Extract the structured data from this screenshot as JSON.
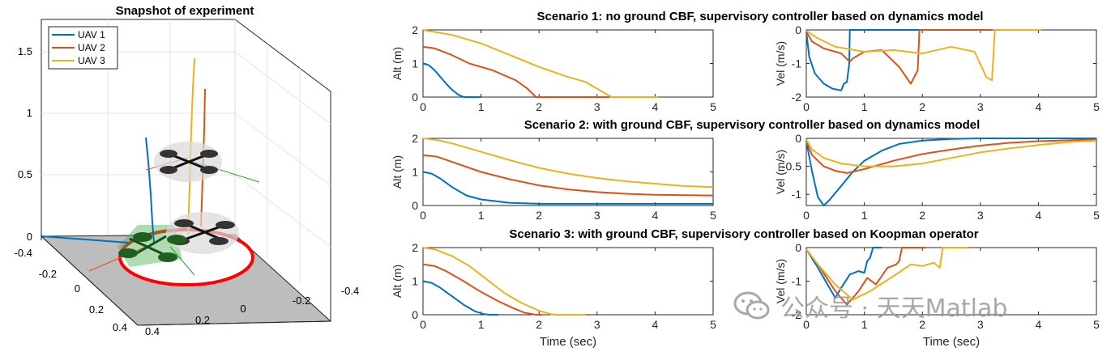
{
  "figure": {
    "legend": [
      "UAV 1",
      "UAV 2",
      "UAV 3"
    ],
    "watermark": "公众号 · 天天Matlab",
    "colors": {
      "uav1": "#0072BD",
      "uav2": "#D95319",
      "uav3": "#EDB120",
      "ground": "#BDBDBD",
      "ring": "#FF0000"
    }
  },
  "snapshot": {
    "title": "Snapshot of experiment",
    "z_ticks": [
      "0",
      "0.5",
      "1",
      "1.5"
    ],
    "x_ticks": [
      "-0.4",
      "-0.2",
      "0",
      "0.2",
      "0.4"
    ],
    "y_ticks": [
      "0.4",
      "0.2",
      "0",
      "-0.2",
      "-0.4"
    ]
  },
  "xlabel": "Time (sec)",
  "chart_data": [
    {
      "type": "line",
      "title": "Scenario 1: no ground CBF, supervisory controller based on dynamics model",
      "ylabel": "Alt (m)",
      "xlim": [
        0,
        5
      ],
      "ylim": [
        0,
        2
      ],
      "xticks": [
        "0",
        "1",
        "2",
        "3",
        "4",
        "5"
      ],
      "yticks": [
        "0",
        "1",
        "2"
      ],
      "series": [
        {
          "name": "UAV 1",
          "x": [
            0,
            0.1,
            0.2,
            0.3,
            0.4,
            0.5,
            0.6,
            0.7,
            0.75,
            1.0
          ],
          "y": [
            1.0,
            0.95,
            0.8,
            0.6,
            0.4,
            0.22,
            0.08,
            0.0,
            0.0,
            0.0
          ]
        },
        {
          "name": "UAV 2",
          "x": [
            0,
            0.2,
            0.5,
            0.8,
            1.2,
            1.6,
            1.8,
            1.95,
            2.5,
            3.2
          ],
          "y": [
            1.5,
            1.45,
            1.25,
            1.0,
            0.8,
            0.5,
            0.25,
            0.0,
            0.0,
            0.0
          ]
        },
        {
          "name": "UAV 3",
          "x": [
            0,
            0.5,
            1.0,
            1.5,
            2.0,
            2.5,
            2.8,
            3.0,
            3.25,
            3.6,
            4.05
          ],
          "y": [
            2.0,
            1.85,
            1.6,
            1.25,
            0.9,
            0.6,
            0.45,
            0.25,
            0.0,
            0.0,
            0.0
          ]
        }
      ]
    },
    {
      "type": "line",
      "ylabel": "Vel (m/s)",
      "xlim": [
        0,
        5
      ],
      "ylim": [
        -2,
        0
      ],
      "xticks": [
        "0",
        "1",
        "2",
        "3",
        "4",
        "5"
      ],
      "yticks": [
        "-2",
        "-1",
        "0"
      ],
      "series": [
        {
          "name": "UAV 1",
          "x": [
            0,
            0.05,
            0.15,
            0.3,
            0.45,
            0.6,
            0.65,
            0.7,
            0.74,
            0.75,
            1.0,
            2.0
          ],
          "y": [
            -0.05,
            -0.8,
            -1.3,
            -1.6,
            -1.75,
            -1.8,
            -1.6,
            -1.55,
            -1.0,
            0.0,
            0.0,
            0.0
          ]
        },
        {
          "name": "UAV 2",
          "x": [
            0,
            0.1,
            0.3,
            0.6,
            0.75,
            0.8,
            1.0,
            1.3,
            1.6,
            1.8,
            1.92,
            1.95,
            2.5,
            3.2
          ],
          "y": [
            -0.05,
            -0.35,
            -0.55,
            -0.7,
            -0.95,
            -0.85,
            -0.65,
            -0.6,
            -1.1,
            -1.6,
            -1.2,
            0.0,
            0.0,
            0.0
          ]
        },
        {
          "name": "UAV 3",
          "x": [
            0,
            0.2,
            0.5,
            1.0,
            1.5,
            2.0,
            2.5,
            2.9,
            3.1,
            3.2,
            3.25,
            3.6,
            4.05
          ],
          "y": [
            -0.02,
            -0.25,
            -0.5,
            -0.65,
            -0.6,
            -0.7,
            -0.5,
            -0.65,
            -1.4,
            -1.5,
            0.0,
            0.0,
            0.0
          ]
        }
      ]
    },
    {
      "type": "line",
      "title": "Scenario 2: with ground CBF, supervisory controller based on dynamics model",
      "ylabel": "Alt (m)",
      "xlim": [
        0,
        5
      ],
      "ylim": [
        0,
        2
      ],
      "xticks": [
        "0",
        "1",
        "2",
        "3",
        "4",
        "5"
      ],
      "yticks": [
        "0",
        "1",
        "2"
      ],
      "series": [
        {
          "name": "UAV 1",
          "x": [
            0,
            0.15,
            0.3,
            0.5,
            0.75,
            1.0,
            1.5,
            2.0,
            3.0,
            5.0
          ],
          "y": [
            1.0,
            0.95,
            0.8,
            0.55,
            0.3,
            0.18,
            0.08,
            0.05,
            0.05,
            0.05
          ]
        },
        {
          "name": "UAV 2",
          "x": [
            0,
            0.25,
            0.5,
            1.0,
            1.5,
            2.0,
            2.5,
            3.0,
            3.5,
            4.0,
            5.0
          ],
          "y": [
            1.5,
            1.45,
            1.3,
            1.0,
            0.78,
            0.6,
            0.48,
            0.4,
            0.35,
            0.32,
            0.3
          ]
        },
        {
          "name": "UAV 3",
          "x": [
            0,
            0.25,
            0.5,
            1.0,
            1.5,
            2.0,
            2.5,
            3.0,
            3.5,
            4.0,
            4.5,
            5.0
          ],
          "y": [
            2.0,
            1.95,
            1.85,
            1.6,
            1.35,
            1.12,
            0.95,
            0.82,
            0.72,
            0.65,
            0.58,
            0.55
          ]
        }
      ]
    },
    {
      "type": "line",
      "ylabel": "Vel (m/s)",
      "xlim": [
        0,
        5
      ],
      "ylim": [
        -1.2,
        0
      ],
      "xticks": [
        "0",
        "1",
        "2",
        "3",
        "4",
        "5"
      ],
      "yticks": [
        "-1",
        "-0.5",
        "0"
      ],
      "series": [
        {
          "name": "UAV 1",
          "x": [
            0,
            0.1,
            0.2,
            0.3,
            0.4,
            0.6,
            0.8,
            1.0,
            1.3,
            1.6,
            2.0,
            2.5,
            3.0,
            5.0
          ],
          "y": [
            -0.05,
            -0.6,
            -1.05,
            -1.2,
            -1.1,
            -0.85,
            -0.6,
            -0.4,
            -0.22,
            -0.1,
            -0.04,
            -0.01,
            0.0,
            0.0
          ]
        },
        {
          "name": "UAV 2",
          "x": [
            0,
            0.1,
            0.3,
            0.5,
            0.7,
            1.0,
            1.5,
            2.0,
            2.5,
            3.0,
            3.5,
            4.0,
            5.0
          ],
          "y": [
            -0.05,
            -0.3,
            -0.5,
            -0.58,
            -0.62,
            -0.55,
            -0.4,
            -0.28,
            -0.2,
            -0.13,
            -0.08,
            -0.05,
            -0.02
          ]
        },
        {
          "name": "UAV 3",
          "x": [
            0,
            0.1,
            0.3,
            0.6,
            1.0,
            1.5,
            2.0,
            2.5,
            3.0,
            3.5,
            4.0,
            4.5,
            5.0
          ],
          "y": [
            -0.02,
            -0.2,
            -0.35,
            -0.45,
            -0.5,
            -0.5,
            -0.45,
            -0.35,
            -0.25,
            -0.18,
            -0.12,
            -0.07,
            -0.04
          ]
        }
      ]
    },
    {
      "type": "line",
      "title": "Scenario 3: with ground CBF, supervisory controller based on Koopman operator",
      "ylabel": "Alt (m)",
      "xlim": [
        0,
        5
      ],
      "ylim": [
        0,
        2
      ],
      "xticks": [
        "0",
        "1",
        "2",
        "3",
        "4",
        "5"
      ],
      "yticks": [
        "0",
        "1",
        "2"
      ],
      "series": [
        {
          "name": "UAV 1",
          "x": [
            0,
            0.15,
            0.3,
            0.5,
            0.7,
            0.9,
            1.05,
            1.15,
            1.3
          ],
          "y": [
            1.0,
            0.95,
            0.8,
            0.55,
            0.3,
            0.1,
            0.02,
            0.0,
            0.0
          ]
        },
        {
          "name": "UAV 2",
          "x": [
            0,
            0.2,
            0.4,
            0.7,
            1.0,
            1.3,
            1.55,
            1.75,
            1.95,
            2.05
          ],
          "y": [
            1.5,
            1.45,
            1.3,
            1.0,
            0.68,
            0.4,
            0.2,
            0.06,
            0.0,
            0.0
          ]
        },
        {
          "name": "UAV 3",
          "x": [
            0,
            0.2,
            0.5,
            0.8,
            1.1,
            1.4,
            1.7,
            2.0,
            2.2,
            2.3,
            2.8
          ],
          "y": [
            2.0,
            1.95,
            1.75,
            1.45,
            1.05,
            0.65,
            0.35,
            0.12,
            0.02,
            0.0,
            0.0
          ]
        }
      ]
    },
    {
      "type": "line",
      "ylabel": "Vel (m/s)",
      "xlim": [
        0,
        5
      ],
      "ylim": [
        -2,
        0
      ],
      "xticks": [
        "0",
        "1",
        "2",
        "3",
        "4",
        "5"
      ],
      "yticks": [
        "-2",
        "-1",
        "0"
      ],
      "series": [
        {
          "name": "UAV 1",
          "x": [
            0,
            0.2,
            0.4,
            0.5,
            0.6,
            0.75,
            0.9,
            1.0,
            1.05,
            1.1,
            1.15,
            1.3
          ],
          "y": [
            -0.05,
            -0.6,
            -1.2,
            -1.5,
            -1.2,
            -0.8,
            -0.7,
            -0.75,
            -0.4,
            -0.3,
            0.0,
            0.0
          ]
        },
        {
          "name": "UAV 2",
          "x": [
            0,
            0.2,
            0.5,
            0.7,
            0.9,
            1.05,
            1.2,
            1.4,
            1.55,
            1.6,
            1.65,
            2.05
          ],
          "y": [
            -0.05,
            -0.5,
            -1.3,
            -1.7,
            -1.3,
            -0.9,
            -1.1,
            -0.6,
            -0.5,
            -0.4,
            0.0,
            0.0
          ]
        },
        {
          "name": "UAV 3",
          "x": [
            0,
            0.2,
            0.5,
            0.8,
            1.1,
            1.5,
            1.8,
            2.0,
            2.2,
            2.3,
            2.35,
            2.8
          ],
          "y": [
            -0.05,
            -0.5,
            -1.1,
            -1.55,
            -1.3,
            -0.85,
            -0.5,
            -0.55,
            -0.45,
            -0.6,
            0.0,
            0.0
          ]
        }
      ]
    }
  ]
}
